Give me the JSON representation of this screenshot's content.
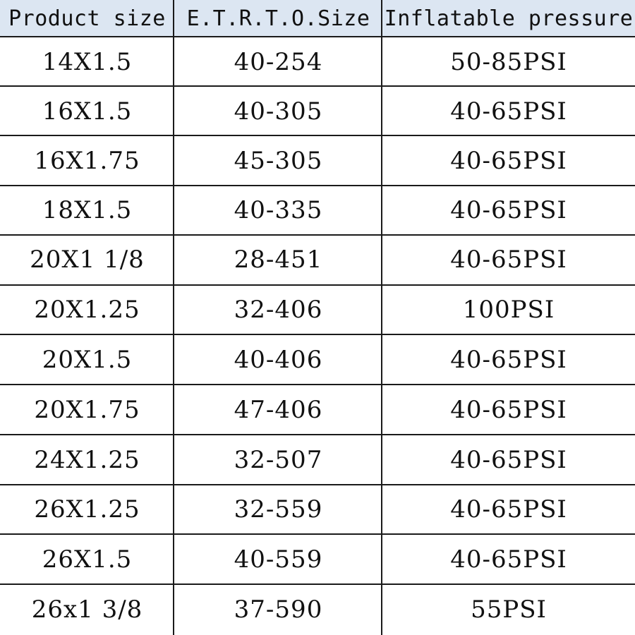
{
  "table": {
    "headers": [
      "Product size",
      "E.T.R.T.O.Size",
      "Inflatable pressure"
    ],
    "rows": [
      [
        "14X1.5",
        "40-254",
        "50-85PSI"
      ],
      [
        "16X1.5",
        "40-305",
        "40-65PSI"
      ],
      [
        "16X1.75",
        "45-305",
        "40-65PSI"
      ],
      [
        "18X1.5",
        "40-335",
        "40-65PSI"
      ],
      [
        "20X1 1/8",
        "28-451",
        "40-65PSI"
      ],
      [
        "20X1.25",
        "32-406",
        "100PSI"
      ],
      [
        "20X1.5",
        "40-406",
        "40-65PSI"
      ],
      [
        "20X1.75",
        "47-406",
        "40-65PSI"
      ],
      [
        "24X1.25",
        "32-507",
        "40-65PSI"
      ],
      [
        "26X1.25",
        "32-559",
        "40-65PSI"
      ],
      [
        "26X1.5",
        "40-559",
        "40-65PSI"
      ],
      [
        "26x1 3/8",
        "37-590",
        "55PSI"
      ]
    ]
  },
  "colors": {
    "header_background": "#dce6f2",
    "grid_line": "#1a1a1a",
    "text": "#111111"
  }
}
